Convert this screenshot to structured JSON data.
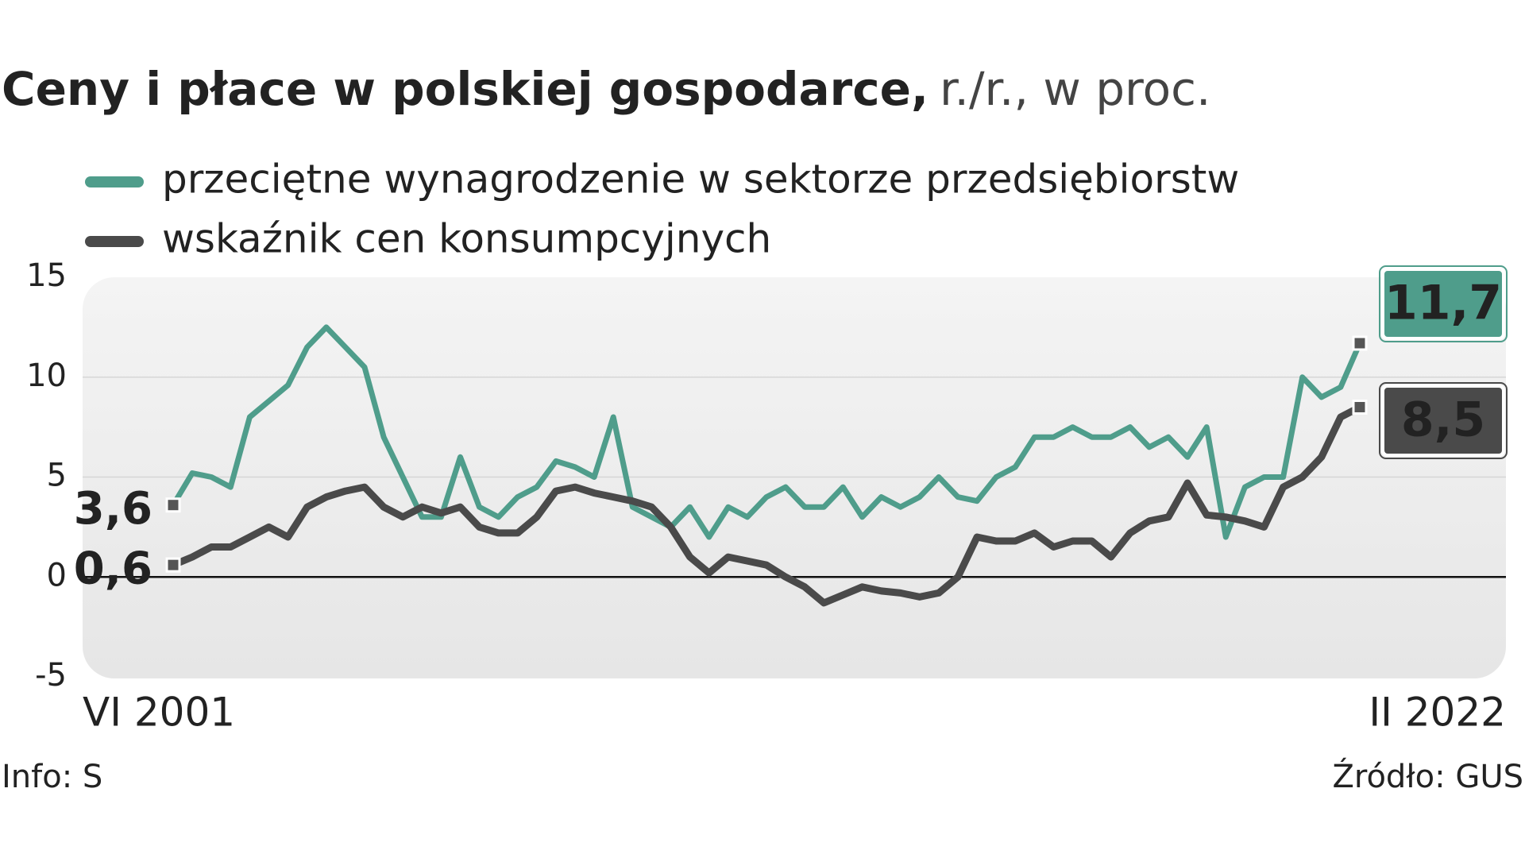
{
  "chart_data": {
    "type": "line",
    "title": "Ceny i płace w polskiej gospodarce,",
    "subtitle": "r./r., w proc.",
    "info": "Info: S",
    "source": "Źródło: GUS",
    "categories": [
      "VI 2001",
      null,
      null,
      null,
      null,
      null,
      null,
      null,
      null,
      null,
      null,
      null,
      null,
      null,
      null,
      null,
      null,
      null,
      null,
      null,
      null,
      null,
      null,
      null,
      null,
      null,
      null,
      null,
      null,
      null,
      null,
      null,
      null,
      null,
      null,
      null,
      null,
      null,
      null,
      null,
      null,
      null,
      null,
      null,
      null,
      null,
      null,
      null,
      null,
      null,
      null,
      null,
      null,
      null,
      null,
      null,
      null,
      null,
      null,
      null,
      null,
      null,
      "II 2022"
    ],
    "series": [
      {
        "name": "przeciętne wynagrodzenie w sektorze przedsiębiorstw",
        "color": "#4f9d8b",
        "values": [
          3.6,
          5.2,
          5.0,
          4.5,
          8.0,
          8.8,
          9.6,
          11.5,
          12.5,
          11.5,
          10.5,
          7.0,
          5.0,
          3.0,
          3.0,
          6.0,
          3.5,
          3.0,
          4.0,
          4.5,
          5.8,
          5.5,
          5.0,
          8.0,
          3.5,
          3.0,
          2.5,
          3.5,
          2.0,
          3.5,
          3.0,
          4.0,
          4.5,
          3.5,
          3.5,
          4.5,
          3.0,
          4.0,
          3.5,
          4.0,
          5.0,
          4.0,
          3.8,
          5.0,
          5.5,
          7.0,
          7.0,
          7.5,
          7.0,
          7.0,
          7.5,
          6.5,
          7.0,
          6.0,
          7.5,
          2.0,
          4.5,
          5.0,
          5.0,
          10.0,
          9.0,
          9.5,
          11.7
        ],
        "value_labels": [
          "3,6",
          null,
          null,
          null,
          null,
          null,
          null,
          null,
          null,
          null,
          null,
          null,
          null,
          null,
          null,
          null,
          null,
          null,
          null,
          null,
          null,
          null,
          null,
          null,
          null,
          null,
          null,
          null,
          null,
          null,
          null,
          null,
          null,
          null,
          null,
          null,
          null,
          null,
          null,
          null,
          null,
          null,
          null,
          null,
          null,
          null,
          null,
          null,
          null,
          null,
          null,
          null,
          null,
          null,
          null,
          null,
          null,
          null,
          null,
          null,
          null,
          null,
          "11,7"
        ]
      },
      {
        "name": "wskaźnik cen konsumpcyjnych",
        "color": "#4a4a4a",
        "values": [
          0.6,
          1.0,
          1.5,
          1.5,
          2.0,
          2.5,
          2.0,
          3.5,
          4.0,
          4.3,
          4.5,
          3.5,
          3.0,
          3.5,
          3.2,
          3.5,
          2.5,
          2.2,
          2.2,
          3.0,
          4.3,
          4.5,
          4.2,
          4.0,
          3.8,
          3.5,
          2.5,
          1.0,
          0.2,
          1.0,
          0.8,
          0.6,
          0.0,
          -0.5,
          -1.3,
          -0.9,
          -0.5,
          -0.7,
          -0.8,
          -1.0,
          -0.8,
          0.0,
          2.0,
          1.8,
          1.8,
          2.2,
          1.5,
          1.8,
          1.8,
          1.0,
          2.2,
          2.8,
          3.0,
          4.7,
          3.1,
          3.0,
          2.8,
          2.5,
          4.5,
          5.0,
          6.0,
          8.0,
          8.5
        ],
        "value_labels": [
          "0,6",
          null,
          null,
          null,
          null,
          null,
          null,
          null,
          null,
          null,
          null,
          null,
          null,
          null,
          null,
          null,
          null,
          null,
          null,
          null,
          null,
          null,
          null,
          null,
          null,
          null,
          null,
          null,
          null,
          null,
          null,
          null,
          null,
          null,
          null,
          null,
          null,
          null,
          null,
          null,
          null,
          null,
          null,
          null,
          null,
          null,
          null,
          null,
          null,
          null,
          null,
          null,
          null,
          null,
          null,
          null,
          null,
          null,
          null,
          null,
          null,
          null,
          "8,5"
        ]
      }
    ],
    "ylim": [
      -5,
      15
    ],
    "yticks": [
      -5,
      0,
      5,
      10,
      15
    ],
    "grid": true
  }
}
